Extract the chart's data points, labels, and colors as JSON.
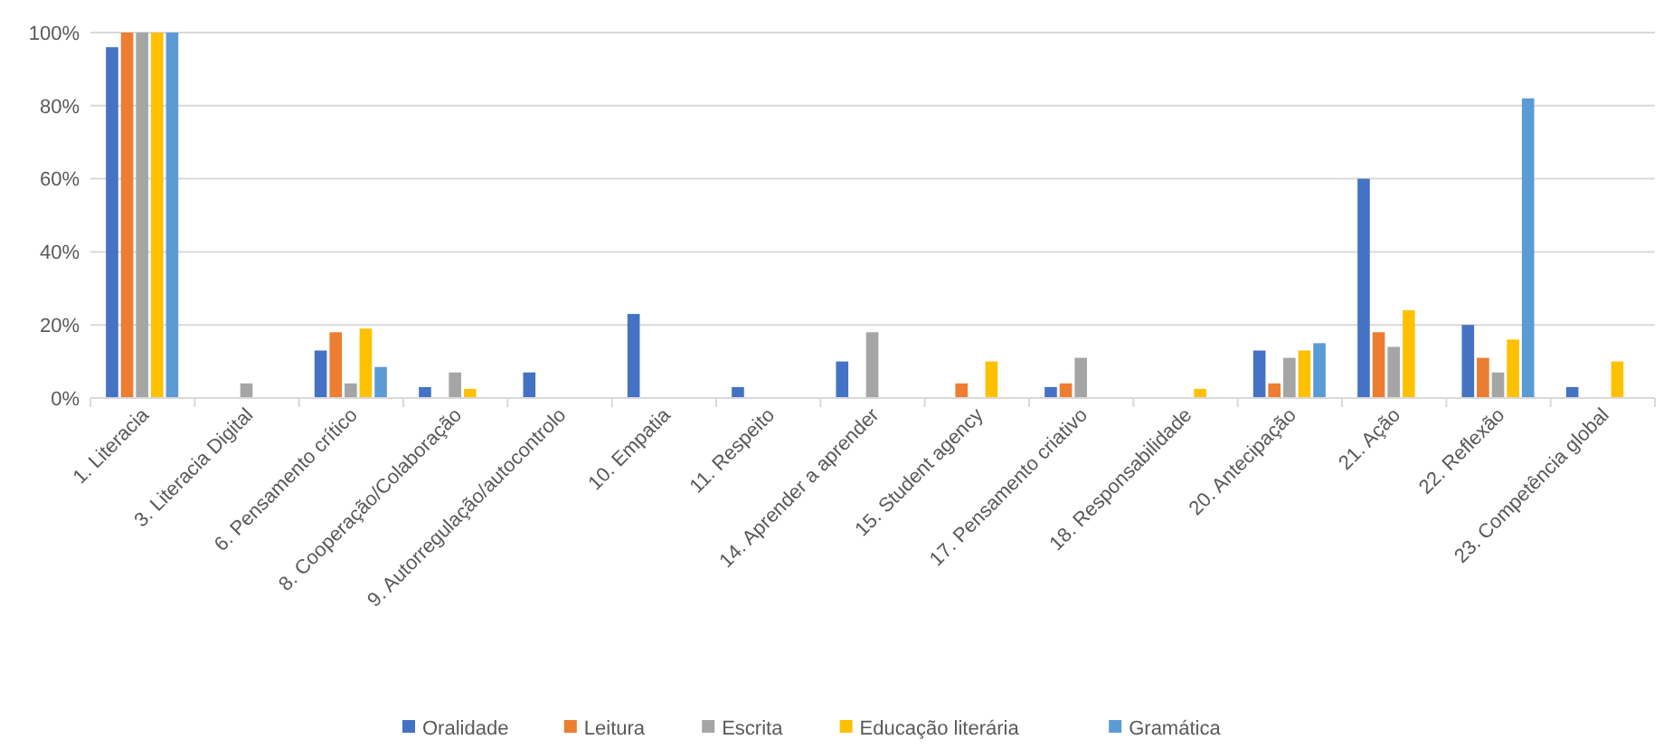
{
  "chart_data": {
    "type": "bar",
    "categories": [
      "1. Literacia",
      "3. Literacia Digital",
      "6. Pensamento crítico",
      "8. Cooperação/Colaboração",
      "9. Autorregulação/autocontrolo",
      "10. Empatia",
      "11. Respeito",
      "14. Aprender a aprender",
      "15. Student agency",
      "17. Pensamento criativo",
      "18. Responsabilidade",
      "20. Antecipação",
      "21. Ação",
      "22. Reflexão",
      "23. Competência global"
    ],
    "series": [
      {
        "name": "Oralidade",
        "color": "#4472c4",
        "values": [
          96,
          null,
          13,
          3,
          7,
          23,
          3,
          10,
          null,
          3,
          null,
          13,
          60,
          20,
          3
        ]
      },
      {
        "name": "Leitura",
        "color": "#ed7d31",
        "values": [
          100,
          null,
          18,
          null,
          null,
          null,
          null,
          null,
          4,
          4,
          null,
          4,
          18,
          11,
          null
        ]
      },
      {
        "name": "Escrita",
        "color": "#a5a5a5",
        "values": [
          100,
          4,
          4,
          7,
          null,
          null,
          null,
          18,
          null,
          11,
          null,
          11,
          14,
          7,
          null
        ]
      },
      {
        "name": "Educação literária",
        "color": "#ffc000",
        "values": [
          100,
          null,
          19,
          2.5,
          null,
          null,
          null,
          null,
          10,
          null,
          2.5,
          13,
          24,
          16,
          10
        ]
      },
      {
        "name": "Gramática",
        "color": "#5b9bd5",
        "values": [
          100,
          null,
          8.5,
          null,
          null,
          null,
          null,
          null,
          null,
          null,
          null,
          15,
          null,
          82,
          null
        ]
      }
    ],
    "ylim": [
      0,
      100
    ],
    "yticks": [
      {
        "value": 0,
        "label": "0%"
      },
      {
        "value": 20,
        "label": "20%"
      },
      {
        "value": 40,
        "label": "40%"
      },
      {
        "value": 60,
        "label": "60%"
      },
      {
        "value": 80,
        "label": "80%"
      },
      {
        "value": 100,
        "label": "100%"
      }
    ],
    "grid": "y",
    "legend": "bottom"
  }
}
